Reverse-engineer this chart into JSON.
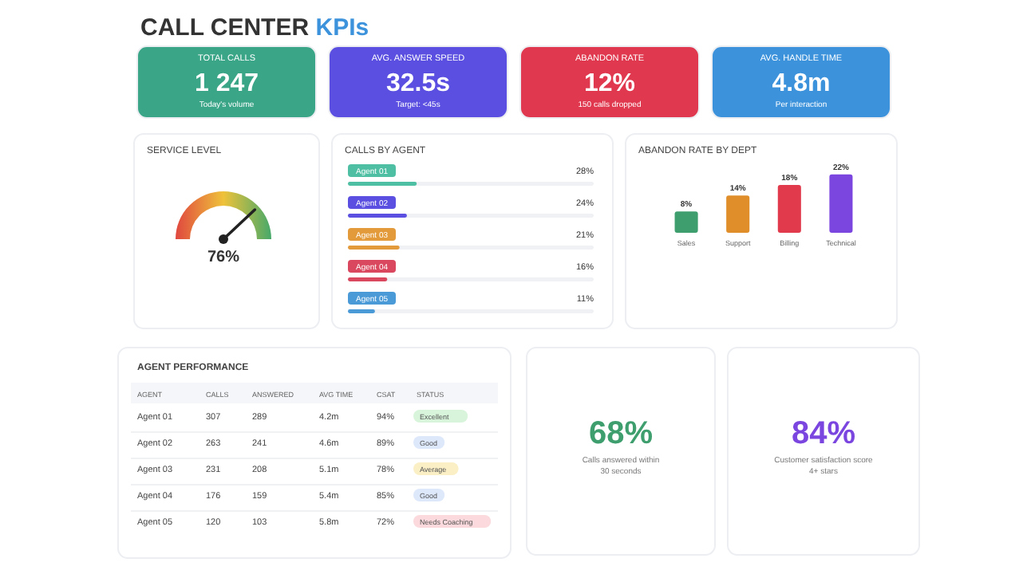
{
  "chart_data": [
    {
      "type": "other",
      "title": "CALL CENTER KPIs",
      "categories": [
        "TOTAL CALLS",
        "AVG. ANSWER SPEED",
        "ABANDON RATE",
        "AVG. HANDLE TIME"
      ],
      "value_labels": [
        "1 247",
        "32.5s",
        "12%",
        "4.8m"
      ],
      "annotations": [
        "Today's volume",
        "Target: <45s",
        "150 calls dropped",
        "Per interaction"
      ],
      "colors": [
        "#3aa587",
        "#5a4fe0",
        "#e0394f",
        "#3c93dc"
      ]
    },
    {
      "type": "other",
      "title": "SERVICE LEVEL",
      "values": [
        76
      ],
      "value_labels": [
        "76%"
      ]
    },
    {
      "type": "bar",
      "orientation": "horizontal",
      "title": "CALLS BY AGENT",
      "categories": [
        "Agent 01",
        "Agent 02",
        "Agent 03",
        "Agent 04",
        "Agent 05"
      ],
      "values": [
        28,
        24,
        21,
        16,
        11
      ],
      "value_labels": [
        "28%",
        "24%",
        "21%",
        "16%",
        "11%"
      ],
      "colors": [
        "#4fbfa3",
        "#5a4fe0",
        "#e39a3a",
        "#d9485e",
        "#4a9ad8"
      ],
      "xlim": [
        0,
        100
      ],
      "tick_labels": false
    },
    {
      "type": "bar",
      "title": "ABANDON RATE BY DEPT",
      "categories": [
        "Sales",
        "Support",
        "Billing",
        "Technical"
      ],
      "values": [
        8,
        14,
        18,
        22
      ],
      "value_labels": [
        "8%",
        "14%",
        "18%",
        "22%"
      ],
      "colors": [
        "#3e9e6e",
        "#e08e2a",
        "#e03a4c",
        "#7b45e0"
      ],
      "ylim": [
        0,
        24
      ],
      "tick_labels": "x"
    },
    {
      "type": "other",
      "title": "AGENT PERFORMANCE",
      "categories": [
        "AGENT",
        "CALLS",
        "ANSWERED",
        "AVG TIME",
        "CSAT",
        "STATUS"
      ],
      "cell_labels": [
        [
          "Agent 01",
          "307",
          "289",
          "4.2m",
          "94%",
          "Excellent"
        ],
        [
          "Agent 02",
          "263",
          "241",
          "4.6m",
          "89%",
          "Good"
        ],
        [
          "Agent 03",
          "231",
          "208",
          "5.1m",
          "78%",
          "Average"
        ],
        [
          "Agent 04",
          "176",
          "159",
          "5.4m",
          "85%",
          "Good"
        ],
        [
          "Agent 05",
          "120",
          "103",
          "5.8m",
          "72%",
          "Needs Coaching"
        ]
      ],
      "colors": [
        "#d8f5dc",
        "#dde8fb",
        "#fbefc6",
        "#dde8fb",
        "#fbd9dc"
      ]
    },
    {
      "type": "other",
      "value_labels": [
        "68%"
      ],
      "annotations": [
        "Calls answered within 30 seconds"
      ],
      "colors": [
        "#3e9e6e"
      ]
    },
    {
      "type": "other",
      "value_labels": [
        "84%"
      ],
      "annotations": [
        "Customer satisfaction score 4+ stars"
      ],
      "colors": [
        "#7b45e0"
      ]
    }
  ]
}
